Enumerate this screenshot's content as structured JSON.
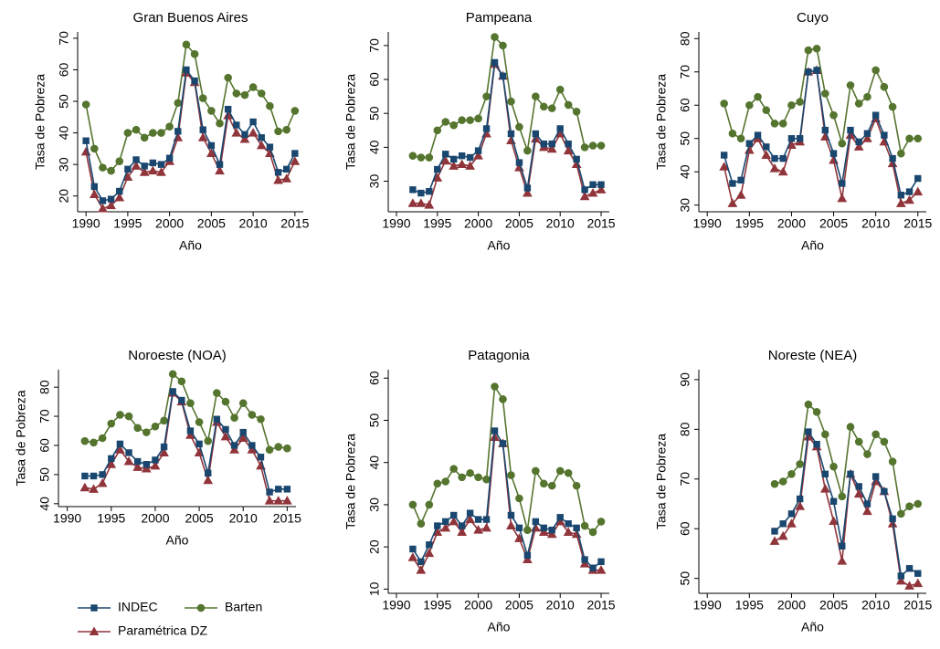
{
  "chart_data": [
    {
      "type": "line",
      "title": "Gran Buenos Aires",
      "xlabel": "Año",
      "ylabel": "Tasa de Pobreza",
      "x": [
        1990,
        1991,
        1992,
        1993,
        1994,
        1995,
        1996,
        1997,
        1998,
        1999,
        2000,
        2001,
        2002,
        2003,
        2004,
        2005,
        2006,
        2007,
        2008,
        2009,
        2010,
        2011,
        2012,
        2013,
        2014,
        2015
      ],
      "xlim": [
        1989,
        2016
      ],
      "xticks": [
        1990,
        1995,
        2000,
        2005,
        2010,
        2015
      ],
      "ylim": [
        15,
        72
      ],
      "yticks": [
        20,
        30,
        40,
        50,
        60,
        70
      ],
      "series": [
        {
          "name": "INDEC",
          "color": "#1a476f",
          "marker": "square",
          "values": [
            37.5,
            23,
            18.5,
            19,
            21.5,
            28.5,
            31.5,
            29.5,
            30.5,
            30,
            32,
            40.5,
            60,
            56.5,
            41,
            36,
            30,
            47.5,
            42.5,
            39.5,
            43.5,
            38.5,
            35.5,
            27.5,
            28.5,
            33.5
          ]
        },
        {
          "name": "Barten",
          "color": "#55752f",
          "marker": "circle",
          "values": [
            49,
            35,
            29,
            28,
            31,
            40,
            41,
            38.5,
            40,
            40,
            42,
            49.5,
            68,
            65,
            51,
            47,
            43,
            57.5,
            52.5,
            52,
            54.5,
            52.5,
            48.5,
            40.5,
            41,
            47
          ]
        },
        {
          "name": "Paramétrica DZ",
          "color": "#90353b",
          "marker": "triangle",
          "values": [
            34,
            20.5,
            16,
            17,
            19.5,
            26,
            29.5,
            27.5,
            28,
            27.5,
            31,
            38.5,
            59,
            56,
            38.5,
            33.5,
            28,
            45.5,
            40,
            38,
            40,
            36,
            33.5,
            25,
            25.5,
            31
          ]
        }
      ]
    },
    {
      "type": "line",
      "title": "Pampeana",
      "xlabel": "Año",
      "ylabel": "Tasa de Pobreza",
      "x": [
        1992,
        1993,
        1994,
        1995,
        1996,
        1997,
        1998,
        1999,
        2000,
        2001,
        2002,
        2003,
        2004,
        2005,
        2006,
        2007,
        2008,
        2009,
        2010,
        2011,
        2012,
        2013,
        2014,
        2015
      ],
      "xlim": [
        1989,
        2016
      ],
      "xticks": [
        1990,
        1995,
        2000,
        2005,
        2010,
        2015
      ],
      "ylim": [
        21,
        74
      ],
      "yticks": [
        30,
        40,
        50,
        60,
        70
      ],
      "series": [
        {
          "name": "INDEC",
          "color": "#1a476f",
          "marker": "square",
          "values": [
            27.5,
            26.5,
            27,
            33.5,
            38,
            36.5,
            37.5,
            37,
            39,
            45.5,
            65,
            61,
            44,
            35.5,
            28,
            44,
            41,
            41,
            45.5,
            41,
            36.5,
            27.5,
            29,
            29
          ]
        },
        {
          "name": "Barten",
          "color": "#55752f",
          "marker": "circle",
          "values": [
            37.5,
            37,
            37,
            45,
            47.5,
            46.5,
            48,
            48,
            48.5,
            55,
            72.5,
            70,
            53.5,
            46,
            39,
            55,
            52,
            51.5,
            57,
            52.5,
            50.5,
            40,
            40.5,
            40.5
          ]
        },
        {
          "name": "Paramétrica DZ",
          "color": "#90353b",
          "marker": "triangle",
          "values": [
            23.5,
            23.5,
            23,
            31,
            36,
            34.5,
            35,
            34.5,
            37.5,
            44,
            64.5,
            61,
            42,
            34,
            26.5,
            42.5,
            40,
            39.5,
            44,
            39,
            35,
            25.5,
            26.5,
            27.5
          ]
        }
      ]
    },
    {
      "type": "line",
      "title": "Cuyo",
      "xlabel": "Año",
      "ylabel": "Tasa de Pobreza",
      "x": [
        1992,
        1993,
        1994,
        1995,
        1996,
        1997,
        1998,
        1999,
        2000,
        2001,
        2002,
        2003,
        2004,
        2005,
        2006,
        2007,
        2008,
        2009,
        2010,
        2011,
        2012,
        2013,
        2014,
        2015
      ],
      "xlim": [
        1989,
        2016
      ],
      "xticks": [
        1990,
        1995,
        2000,
        2005,
        2010,
        2015
      ],
      "ylim": [
        28,
        82
      ],
      "yticks": [
        30,
        40,
        50,
        60,
        70,
        80
      ],
      "series": [
        {
          "name": "INDEC",
          "color": "#1a476f",
          "marker": "square",
          "values": [
            45,
            36.5,
            37.5,
            48.5,
            51,
            47.5,
            44,
            44,
            50,
            50,
            70,
            70.5,
            52.5,
            45.5,
            36.5,
            52.5,
            49,
            51.5,
            57,
            51,
            44,
            33,
            34,
            38
          ]
        },
        {
          "name": "Barten",
          "color": "#55752f",
          "marker": "circle",
          "values": [
            60.5,
            51.5,
            50,
            60,
            62.5,
            58.5,
            54.5,
            54.5,
            60,
            61,
            76.5,
            77,
            63.5,
            57,
            48.5,
            66,
            60.5,
            62.5,
            70.5,
            65.5,
            59.5,
            45.5,
            50,
            50
          ]
        },
        {
          "name": "Paramétrica DZ",
          "color": "#90353b",
          "marker": "triangle",
          "values": [
            41.5,
            30.5,
            33,
            46.5,
            50,
            45,
            41,
            40,
            48,
            49,
            70,
            70.5,
            50.5,
            43.5,
            32,
            51,
            47.5,
            50,
            56,
            49,
            42.5,
            30.5,
            31.5,
            34
          ]
        }
      ]
    },
    {
      "type": "line",
      "title": "Noroeste (NOA)",
      "xlabel": "Año",
      "ylabel": "Tasa de Pobreza",
      "x": [
        1992,
        1993,
        1994,
        1995,
        1996,
        1997,
        1998,
        1999,
        2000,
        2001,
        2002,
        2003,
        2004,
        2005,
        2006,
        2007,
        2008,
        2009,
        2010,
        2011,
        2012,
        2013,
        2014,
        2015
      ],
      "xlim": [
        1989,
        2016
      ],
      "xticks": [
        1990,
        1995,
        2000,
        2005,
        2010,
        2015
      ],
      "ylim": [
        39,
        86
      ],
      "yticks": [
        40,
        50,
        60,
        70,
        80
      ],
      "series": [
        {
          "name": "INDEC",
          "color": "#1a476f",
          "marker": "square",
          "values": [
            49.5,
            49.5,
            50,
            55.5,
            60.5,
            57.5,
            54.5,
            53.5,
            55,
            59.5,
            78.5,
            75.5,
            65,
            60.5,
            50.5,
            69,
            65.5,
            60,
            64.5,
            60,
            56,
            44,
            45,
            45
          ]
        },
        {
          "name": "Barten",
          "color": "#55752f",
          "marker": "circle",
          "values": [
            61.5,
            61,
            62.5,
            67.5,
            70.5,
            70,
            66,
            64.5,
            66.5,
            68.5,
            84.5,
            82,
            74.5,
            68,
            61.5,
            78,
            75,
            69.5,
            74.5,
            70.5,
            69,
            58.5,
            59.5,
            59
          ]
        },
        {
          "name": "Paramétrica DZ",
          "color": "#90353b",
          "marker": "triangle",
          "values": [
            45.5,
            45,
            47,
            53.5,
            58.5,
            54.5,
            52.5,
            52,
            53,
            57.5,
            78,
            75,
            63.5,
            57.5,
            48,
            68,
            63,
            58.5,
            62.5,
            58.5,
            53,
            41,
            41,
            41
          ]
        }
      ]
    },
    {
      "type": "line",
      "title": "Patagonia",
      "xlabel": "Año",
      "ylabel": "Tasa de Pobreza",
      "x": [
        1992,
        1993,
        1994,
        1995,
        1996,
        1997,
        1998,
        1999,
        2000,
        2001,
        2002,
        2003,
        2004,
        2005,
        2006,
        2007,
        2008,
        2009,
        2010,
        2011,
        2012,
        2013,
        2014,
        2015
      ],
      "xlim": [
        1989,
        2016
      ],
      "xticks": [
        1990,
        1995,
        2000,
        2005,
        2010,
        2015
      ],
      "ylim": [
        9,
        62
      ],
      "yticks": [
        10,
        20,
        30,
        40,
        50,
        60
      ],
      "series": [
        {
          "name": "INDEC",
          "color": "#1a476f",
          "marker": "square",
          "values": [
            19.5,
            16.5,
            20.5,
            25,
            26,
            27.5,
            25,
            28,
            26.5,
            26.5,
            47.5,
            44.5,
            27.5,
            24.5,
            18,
            26,
            24.5,
            24,
            27,
            25.5,
            24.5,
            17,
            15,
            16.5
          ]
        },
        {
          "name": "Barten",
          "color": "#55752f",
          "marker": "circle",
          "values": [
            30,
            25.5,
            30,
            35,
            35.5,
            38.5,
            36.5,
            37.5,
            36.5,
            36,
            58,
            55,
            37,
            31.5,
            24,
            38,
            35,
            34.5,
            38,
            37.5,
            34.5,
            25,
            23.5,
            26
          ]
        },
        {
          "name": "Paramétrica DZ",
          "color": "#90353b",
          "marker": "triangle",
          "values": [
            17.5,
            14.5,
            18.5,
            23.5,
            24.5,
            26,
            23.5,
            26.5,
            24,
            24.5,
            46,
            44.5,
            25,
            22,
            17,
            24.5,
            23.5,
            23,
            26,
            23.5,
            23,
            16,
            14.5,
            14.5
          ]
        }
      ]
    },
    {
      "type": "line",
      "title": "Noreste (NEA)",
      "xlabel": "Año",
      "ylabel": "Tasa de Pobreza",
      "x": [
        1998,
        1999,
        2000,
        2001,
        2002,
        2003,
        2004,
        2005,
        2006,
        2007,
        2008,
        2009,
        2010,
        2011,
        2012,
        2013,
        2014,
        2015
      ],
      "xlim": [
        1989,
        2016
      ],
      "xticks": [
        1990,
        1995,
        2000,
        2005,
        2010,
        2015
      ],
      "ylim": [
        47,
        92
      ],
      "yticks": [
        50,
        60,
        70,
        80,
        90
      ],
      "series": [
        {
          "name": "INDEC",
          "color": "#1a476f",
          "marker": "square",
          "values": [
            59.5,
            61,
            63,
            66,
            79.5,
            77,
            71,
            65.5,
            56.5,
            71,
            68.5,
            65,
            70.5,
            67.5,
            62,
            50.5,
            52,
            51
          ]
        },
        {
          "name": "Barten",
          "color": "#55752f",
          "marker": "circle",
          "values": [
            69,
            69.5,
            71,
            73,
            85,
            83.5,
            79,
            72.5,
            66.5,
            80.5,
            77.5,
            75,
            79,
            77.5,
            73.5,
            63,
            64.5,
            65
          ]
        },
        {
          "name": "Paramétrica DZ",
          "color": "#90353b",
          "marker": "triangle",
          "values": [
            57.5,
            58.5,
            61,
            64.5,
            78.5,
            76.5,
            68,
            61.5,
            53.5,
            71,
            67,
            63.5,
            69.5,
            67.5,
            61,
            49.5,
            48.5,
            49
          ]
        }
      ]
    }
  ]
}
